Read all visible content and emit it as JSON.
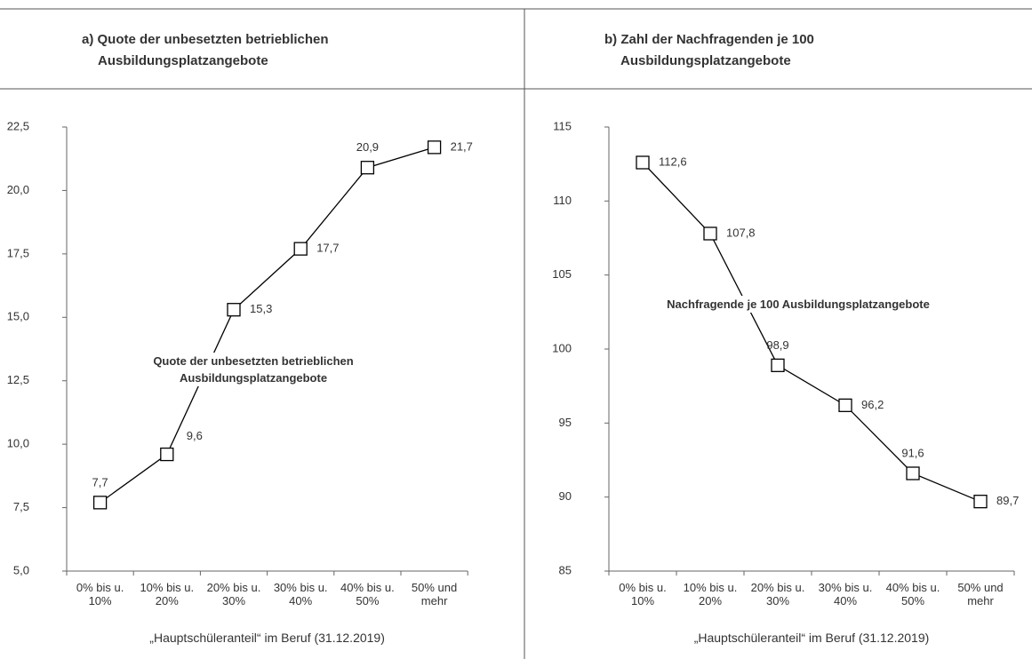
{
  "chart_data": [
    {
      "type": "line",
      "title": "a) Quote der unbesetzten betrieblichen Ausbildungsplatzangebote",
      "xlabel": "„Hauptschüleranteil“ im Beruf (31.12.2019)",
      "annotation": "Quote der unbesetzten betrieblichen Ausbildungsplatzangebote",
      "categories": [
        "0% bis u. 10%",
        "10% bis u. 20%",
        "20% bis u. 30%",
        "30% bis u. 40%",
        "40% bis u. 50%",
        "50% und mehr"
      ],
      "values": [
        7.7,
        9.6,
        15.3,
        17.7,
        20.9,
        21.7
      ],
      "value_labels": [
        "7,7",
        "9,6",
        "15,3",
        "17,7",
        "20,9",
        "21,7"
      ],
      "color": "#000000",
      "ylim": [
        5,
        22.5
      ],
      "yticks": [
        {
          "value": 5,
          "label": "5,0"
        },
        {
          "value": 7.5,
          "label": "7,5"
        },
        {
          "value": 10,
          "label": "10,0"
        },
        {
          "value": 12.5,
          "label": "12,5"
        },
        {
          "value": 15,
          "label": "15,0"
        },
        {
          "value": 17.5,
          "label": "17,5"
        },
        {
          "value": 20,
          "label": "20,0"
        },
        {
          "value": 22.5,
          "label": "22,5"
        }
      ]
    },
    {
      "type": "line",
      "title": "b) Zahl der Nachfragenden je 100 Ausbildungsplatzangebote",
      "xlabel": "„Hauptschüleranteil“ im Beruf (31.12.2019)",
      "annotation": "Nachfragende je 100 Ausbildungsplatzangebote",
      "categories": [
        "0% bis u. 10%",
        "10% bis u. 20%",
        "20% bis u. 30%",
        "30% bis u. 40%",
        "40% bis u. 50%",
        "50% und mehr"
      ],
      "values": [
        112.6,
        107.8,
        98.9,
        96.2,
        91.6,
        89.7
      ],
      "value_labels": [
        "112,6",
        "107,8",
        "98,9",
        "96,2",
        "91,6",
        "89,7"
      ],
      "color": "#000000",
      "ylim": [
        85,
        115
      ],
      "yticks": [
        85,
        90,
        95,
        100,
        105,
        110,
        115
      ]
    }
  ]
}
